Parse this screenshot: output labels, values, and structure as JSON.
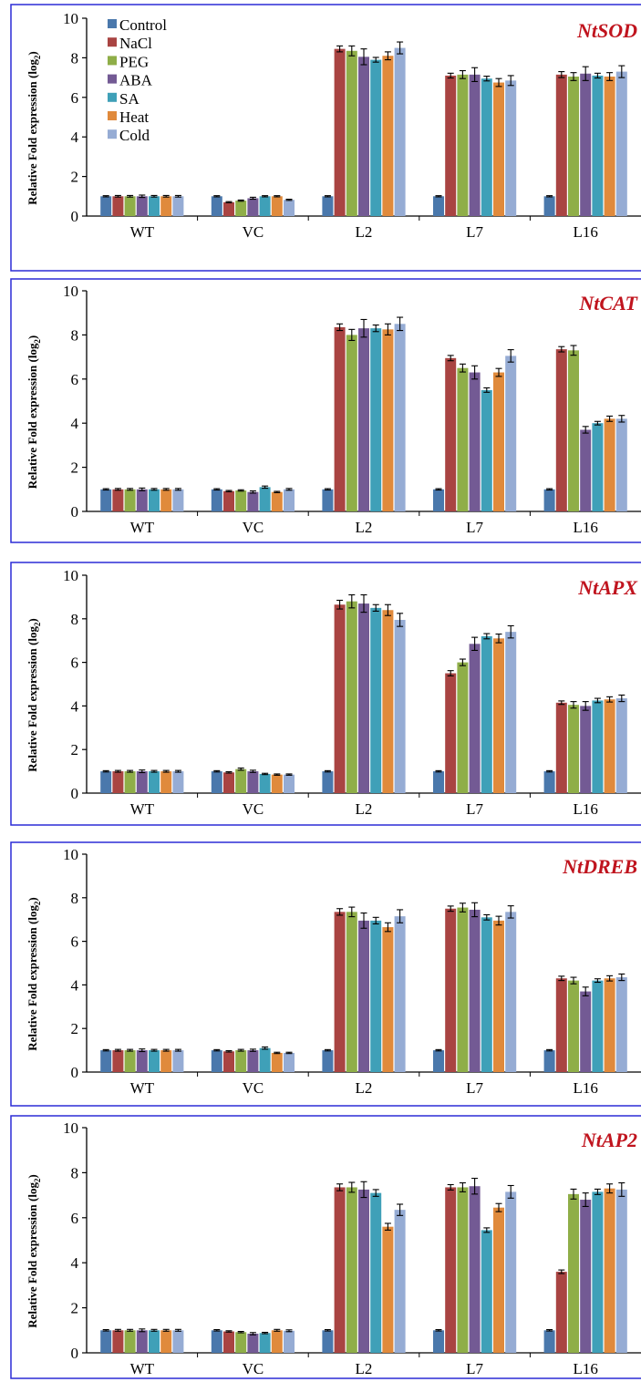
{
  "colors": {
    "panel_border": "#2b2bd6",
    "gene_label": "#c0141e",
    "series": [
      "#4a78ac",
      "#a94442",
      "#8fae48",
      "#735a94",
      "#3fa0b8",
      "#e08a3c",
      "#96acd4"
    ]
  },
  "chart_data": [
    {
      "type": "bar",
      "title": "NtSOD",
      "ylabel": "Relative Fold expression (log",
      "ylabel_sub": "2",
      "ylabel_tail": ")",
      "ylim": [
        0,
        10
      ],
      "yticks": [
        "0",
        "2",
        "4",
        "6",
        "8",
        "10"
      ],
      "categories": [
        "WT",
        "VC",
        "L2",
        "L7",
        "L16"
      ],
      "legend": true,
      "legend_position": "top-left",
      "error_bars": true,
      "series": [
        {
          "name": "Control",
          "values": [
            1,
            1,
            1,
            1,
            1
          ],
          "errors": [
            0.03,
            0.03,
            0.03,
            0.03,
            0.03
          ]
        },
        {
          "name": "NaCl",
          "values": [
            1,
            0.7,
            8.45,
            7.1,
            7.15
          ],
          "errors": [
            0.04,
            0.03,
            0.15,
            0.12,
            0.15
          ]
        },
        {
          "name": "PEG",
          "values": [
            1,
            0.78,
            8.35,
            7.15,
            7.05
          ],
          "errors": [
            0.04,
            0.03,
            0.25,
            0.2,
            0.2
          ]
        },
        {
          "name": "ABA",
          "values": [
            1,
            0.9,
            8.05,
            7.15,
            7.2
          ],
          "errors": [
            0.06,
            0.05,
            0.4,
            0.35,
            0.35
          ]
        },
        {
          "name": "SA",
          "values": [
            1,
            1,
            7.9,
            6.95,
            7.1
          ],
          "errors": [
            0.04,
            0.03,
            0.12,
            0.12,
            0.12
          ]
        },
        {
          "name": "Heat",
          "values": [
            1,
            1,
            8.1,
            6.75,
            7.05
          ],
          "errors": [
            0.04,
            0.03,
            0.2,
            0.2,
            0.2
          ]
        },
        {
          "name": "Cold",
          "values": [
            1,
            0.82,
            8.5,
            6.85,
            7.3
          ],
          "errors": [
            0.04,
            0.03,
            0.3,
            0.25,
            0.3
          ]
        }
      ]
    },
    {
      "type": "bar",
      "title": "NtCAT",
      "ylabel": "Relative Fold expression (log",
      "ylabel_sub": "2",
      "ylabel_tail": ")",
      "ylim": [
        0,
        10
      ],
      "yticks": [
        "0",
        "2",
        "4",
        "6",
        "8",
        "10"
      ],
      "categories": [
        "WT",
        "VC",
        "L2",
        "L7",
        "L16"
      ],
      "legend": false,
      "error_bars": true,
      "series": [
        {
          "name": "Control",
          "values": [
            1,
            1,
            1,
            1,
            1
          ],
          "errors": [
            0.03,
            0.03,
            0.03,
            0.03,
            0.03
          ]
        },
        {
          "name": "NaCl",
          "values": [
            1,
            0.92,
            8.35,
            6.95,
            7.35
          ],
          "errors": [
            0.04,
            0.03,
            0.15,
            0.12,
            0.12
          ]
        },
        {
          "name": "PEG",
          "values": [
            1,
            0.95,
            8.0,
            6.5,
            7.3
          ],
          "errors": [
            0.04,
            0.03,
            0.25,
            0.18,
            0.22
          ]
        },
        {
          "name": "ABA",
          "values": [
            1,
            0.88,
            8.3,
            6.3,
            3.7
          ],
          "errors": [
            0.06,
            0.05,
            0.4,
            0.3,
            0.15
          ]
        },
        {
          "name": "SA",
          "values": [
            1,
            1.1,
            8.3,
            5.5,
            4.0
          ],
          "errors": [
            0.04,
            0.05,
            0.15,
            0.1,
            0.08
          ]
        },
        {
          "name": "Heat",
          "values": [
            1,
            0.88,
            8.25,
            6.3,
            4.2
          ],
          "errors": [
            0.04,
            0.03,
            0.25,
            0.18,
            0.12
          ]
        },
        {
          "name": "Cold",
          "values": [
            1,
            1,
            8.5,
            7.05,
            4.2
          ],
          "errors": [
            0.04,
            0.04,
            0.3,
            0.28,
            0.15
          ]
        }
      ]
    },
    {
      "type": "bar",
      "title": "NtAPX",
      "ylabel": "Relative Fold expression (log",
      "ylabel_sub": "2",
      "ylabel_tail": ")",
      "ylim": [
        0,
        10
      ],
      "yticks": [
        "0",
        "2",
        "4",
        "6",
        "8",
        "10"
      ],
      "categories": [
        "WT",
        "VC",
        "L2",
        "L7",
        "L16"
      ],
      "legend": false,
      "error_bars": true,
      "series": [
        {
          "name": "Control",
          "values": [
            1,
            1,
            1,
            1,
            1
          ],
          "errors": [
            0.03,
            0.03,
            0.03,
            0.03,
            0.03
          ]
        },
        {
          "name": "NaCl",
          "values": [
            1,
            0.95,
            8.65,
            5.5,
            4.15
          ],
          "errors": [
            0.04,
            0.03,
            0.2,
            0.12,
            0.08
          ]
        },
        {
          "name": "PEG",
          "values": [
            1,
            1.1,
            8.8,
            6.0,
            4.05
          ],
          "errors": [
            0.04,
            0.05,
            0.3,
            0.15,
            0.15
          ]
        },
        {
          "name": "ABA",
          "values": [
            1,
            1.0,
            8.7,
            6.85,
            4.0
          ],
          "errors": [
            0.06,
            0.05,
            0.4,
            0.3,
            0.2
          ]
        },
        {
          "name": "SA",
          "values": [
            1,
            0.88,
            8.5,
            7.2,
            4.25
          ],
          "errors": [
            0.04,
            0.03,
            0.15,
            0.12,
            0.1
          ]
        },
        {
          "name": "Heat",
          "values": [
            1,
            0.85,
            8.4,
            7.1,
            4.3
          ],
          "errors": [
            0.04,
            0.03,
            0.25,
            0.2,
            0.12
          ]
        },
        {
          "name": "Cold",
          "values": [
            1,
            0.85,
            7.95,
            7.4,
            4.35
          ],
          "errors": [
            0.04,
            0.03,
            0.3,
            0.28,
            0.15
          ]
        }
      ]
    },
    {
      "type": "bar",
      "title": "NtDREB",
      "ylabel": "Relative Fold expression (log",
      "ylabel_sub": "2",
      "ylabel_tail": ")",
      "ylim": [
        0,
        10
      ],
      "yticks": [
        "0",
        "2",
        "4",
        "6",
        "8",
        "10"
      ],
      "categories": [
        "WT",
        "VC",
        "L2",
        "L7",
        "L16"
      ],
      "legend": false,
      "error_bars": true,
      "series": [
        {
          "name": "Control",
          "values": [
            1,
            1,
            1,
            1,
            1
          ],
          "errors": [
            0.03,
            0.03,
            0.03,
            0.03,
            0.03
          ]
        },
        {
          "name": "NaCl",
          "values": [
            1,
            0.95,
            7.35,
            7.5,
            4.3
          ],
          "errors": [
            0.04,
            0.03,
            0.15,
            0.12,
            0.1
          ]
        },
        {
          "name": "PEG",
          "values": [
            1,
            1,
            7.35,
            7.55,
            4.2
          ],
          "errors": [
            0.04,
            0.04,
            0.22,
            0.2,
            0.15
          ]
        },
        {
          "name": "ABA",
          "values": [
            1,
            1,
            6.95,
            7.45,
            3.7
          ],
          "errors": [
            0.06,
            0.05,
            0.35,
            0.32,
            0.2
          ]
        },
        {
          "name": "SA",
          "values": [
            1,
            1.1,
            6.95,
            7.1,
            4.2
          ],
          "errors": [
            0.04,
            0.05,
            0.15,
            0.12,
            0.08
          ]
        },
        {
          "name": "Heat",
          "values": [
            1,
            0.88,
            6.65,
            6.95,
            4.3
          ],
          "errors": [
            0.04,
            0.03,
            0.2,
            0.2,
            0.12
          ]
        },
        {
          "name": "Cold",
          "values": [
            1,
            0.88,
            7.15,
            7.35,
            4.35
          ],
          "errors": [
            0.04,
            0.03,
            0.3,
            0.28,
            0.15
          ]
        }
      ]
    },
    {
      "type": "bar",
      "title": "NtAP2",
      "ylabel": "Relative Fold expression (log",
      "ylabel_sub": "2",
      "ylabel_tail": ")",
      "ylim": [
        0,
        10
      ],
      "yticks": [
        "0",
        "2",
        "4",
        "6",
        "8",
        "10"
      ],
      "categories": [
        "WT",
        "VC",
        "L2",
        "L7",
        "L16"
      ],
      "legend": false,
      "error_bars": true,
      "series": [
        {
          "name": "Control",
          "values": [
            1,
            1,
            1,
            1,
            1
          ],
          "errors": [
            0.03,
            0.03,
            0.03,
            0.03,
            0.03
          ]
        },
        {
          "name": "NaCl",
          "values": [
            1,
            0.95,
            7.35,
            7.35,
            3.6
          ],
          "errors": [
            0.04,
            0.03,
            0.15,
            0.12,
            0.08
          ]
        },
        {
          "name": "PEG",
          "values": [
            1,
            0.92,
            7.35,
            7.35,
            7.05
          ],
          "errors": [
            0.04,
            0.03,
            0.22,
            0.2,
            0.22
          ]
        },
        {
          "name": "ABA",
          "values": [
            1,
            0.85,
            7.25,
            7.4,
            6.8
          ],
          "errors": [
            0.06,
            0.05,
            0.35,
            0.35,
            0.3
          ]
        },
        {
          "name": "SA",
          "values": [
            1,
            0.88,
            7.1,
            5.45,
            7.15
          ],
          "errors": [
            0.04,
            0.03,
            0.15,
            0.1,
            0.12
          ]
        },
        {
          "name": "Heat",
          "values": [
            1,
            1,
            5.6,
            6.45,
            7.3
          ],
          "errors": [
            0.04,
            0.04,
            0.15,
            0.18,
            0.2
          ]
        },
        {
          "name": "Cold",
          "values": [
            1,
            0.98,
            6.35,
            7.15,
            7.25
          ],
          "errors": [
            0.04,
            0.04,
            0.25,
            0.28,
            0.3
          ]
        }
      ]
    }
  ]
}
